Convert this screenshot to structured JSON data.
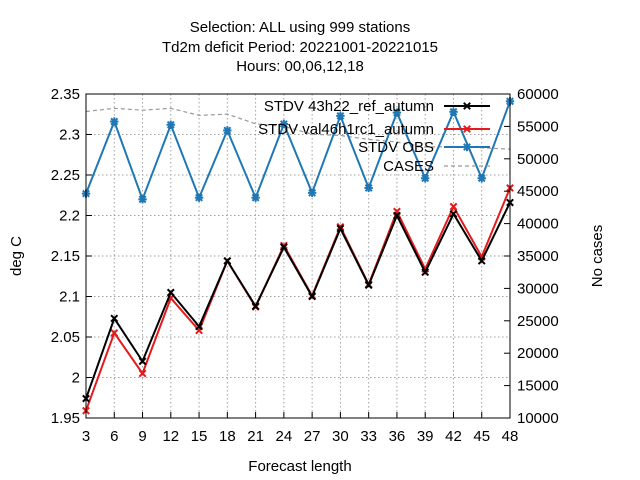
{
  "chart_data": {
    "type": "line",
    "title_lines": [
      "Selection: ALL using   999 stations",
      "Td2m deficit   Period: 20221001-20221015",
      "Hours:  00,06,12,18"
    ],
    "xlabel": "Forecast length",
    "ylabel": "deg C",
    "y2label": "No cases",
    "x": [
      3,
      6,
      9,
      12,
      15,
      18,
      21,
      24,
      27,
      30,
      33,
      36,
      39,
      42,
      45,
      48
    ],
    "xticks": [
      "3",
      "6",
      "9",
      "12",
      "15",
      "18",
      "21",
      "24",
      "27",
      "30",
      "33",
      "36",
      "39",
      "42",
      "45",
      "48"
    ],
    "ylim": [
      1.95,
      2.35
    ],
    "yticks": [
      "1.95",
      "2",
      "2.05",
      "2.1",
      "2.15",
      "2.2",
      "2.25",
      "2.3",
      "2.35"
    ],
    "y2lim": [
      10000,
      60000
    ],
    "y2ticks": [
      "10000",
      "15000",
      "20000",
      "25000",
      "30000",
      "35000",
      "40000",
      "45000",
      "50000",
      "55000",
      "60000"
    ],
    "grid": true,
    "legend_position": "top-right",
    "series": [
      {
        "name": "STDV 43h22_ref_autumn",
        "color": "#000000",
        "axis": "y",
        "style": "line-x",
        "values": [
          1.974,
          2.073,
          2.02,
          2.105,
          2.063,
          2.144,
          2.088,
          2.161,
          2.1,
          2.184,
          2.114,
          2.2,
          2.13,
          2.202,
          2.144,
          2.216
        ]
      },
      {
        "name": "STDV val46h1rc1_autumn",
        "color": "#e41a1c",
        "axis": "y",
        "style": "line-x",
        "values": [
          1.959,
          2.055,
          2.005,
          2.098,
          2.058,
          2.144,
          2.087,
          2.163,
          2.101,
          2.186,
          2.115,
          2.205,
          2.134,
          2.211,
          2.149,
          2.234
        ]
      },
      {
        "name": "STDV OBS",
        "color": "#1f78b4",
        "axis": "y",
        "style": "line-star",
        "values": [
          2.227,
          2.316,
          2.22,
          2.312,
          2.222,
          2.305,
          2.222,
          2.313,
          2.228,
          2.323,
          2.234,
          2.327,
          2.246,
          2.328,
          2.246,
          2.341
        ]
      },
      {
        "name": "CASES",
        "color": "#999999",
        "axis": "y2",
        "style": "dashed",
        "values": [
          57300,
          57800,
          57500,
          57800,
          56700,
          56900,
          55400,
          55000,
          53800,
          53600,
          53000,
          52600,
          51800,
          51900,
          51700,
          51500
        ]
      }
    ]
  }
}
